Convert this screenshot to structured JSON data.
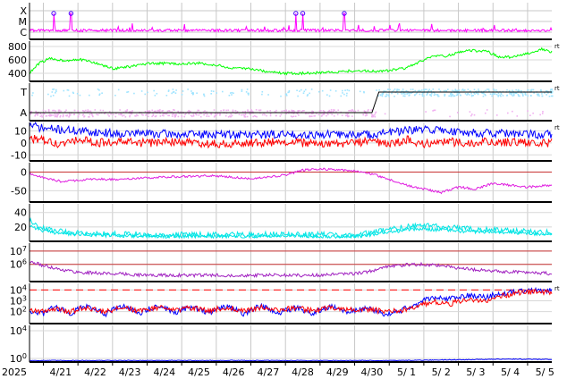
{
  "chart_data": {
    "type": "line",
    "x_axis": {
      "year_label": "2025",
      "dates": [
        "4/21",
        "4/22",
        "4/23",
        "4/24",
        "4/25",
        "4/26",
        "4/27",
        "4/28",
        "4/29",
        "4/30",
        "5/ 1",
        "5/ 2",
        "5/ 3",
        "5/ 4",
        "5/ 5"
      ],
      "day_range": [
        20.6,
        35.7
      ],
      "grid": true
    },
    "panels": [
      {
        "id": "xray",
        "type": "line",
        "yticks": [
          "X",
          "M",
          "C"
        ],
        "series": [
          {
            "color": "#ff00ff",
            "style": "spiky flux near C level with occasional flares to M"
          }
        ],
        "events": [
          21.3,
          21.8,
          28.3,
          28.5,
          29.7
        ],
        "event_color": "#4400ff"
      },
      {
        "id": "speed",
        "type": "line",
        "yticks": [
          400,
          600,
          800
        ],
        "ylim": [
          280,
          880
        ],
        "rt": "rt",
        "series": [
          {
            "color": "#00ff00",
            "x": [
              20.6,
              20.9,
              21.2,
              21.6,
              22.0,
              22.4,
              23.0,
              23.5,
              24.0,
              24.5,
              25.0,
              25.5,
              26.0,
              26.5,
              27.0,
              27.5,
              28.0,
              28.5,
              29.0,
              29.5,
              30.0,
              30.5,
              31.0,
              31.5,
              32.0,
              32.3,
              32.7,
              33.0,
              33.4,
              33.8,
              34.2,
              34.6,
              35.0,
              35.4,
              35.7
            ],
            "values": [
              400,
              560,
              620,
              590,
              610,
              570,
              470,
              500,
              540,
              550,
              540,
              550,
              520,
              470,
              470,
              420,
              400,
              400,
              410,
              420,
              440,
              430,
              440,
              480,
              600,
              650,
              660,
              720,
              740,
              730,
              640,
              640,
              700,
              760,
              720
            ]
          }
        ]
      },
      {
        "id": "polarity",
        "type": "line",
        "yticks": [
          "T",
          "A"
        ],
        "rt": "rt",
        "series": [
          {
            "color": "#f0b0f0",
            "style": "scattered points near A level until 4/30"
          },
          {
            "color": "#a0e4ff",
            "style": "scattered points near T level"
          },
          {
            "color": "#000000",
            "x": [
              20.6,
              30.5,
              30.7,
              35.7
            ],
            "values": [
              "A",
              "A",
              "T",
              "T"
            ]
          }
        ]
      },
      {
        "id": "imf",
        "type": "line",
        "yticks": [
          10,
          0,
          -10
        ],
        "ylim": [
          -15,
          17
        ],
        "rt": "rt",
        "series": [
          {
            "color": "#ff0000",
            "x": [
              20.6,
              21.0,
              21.5,
              22.0,
              22.5,
              23.0,
              24.0,
              25.0,
              26.0,
              27.0,
              28.0,
              29.0,
              30.0,
              30.5,
              31.0,
              31.5,
              32.0,
              32.5,
              33.0,
              34.0,
              35.0,
              35.7
            ],
            "values": [
              4,
              2,
              -2,
              3,
              0,
              1,
              0,
              1,
              -1,
              0,
              1,
              -1,
              0,
              2,
              -2,
              3,
              -1,
              2,
              0,
              1,
              0,
              0
            ]
          },
          {
            "color": "#0000ff",
            "x": [
              20.6,
              21.0,
              21.5,
              22.0,
              22.5,
              23.0,
              24.0,
              25.0,
              26.0,
              27.0,
              28.0,
              29.0,
              30.0,
              30.5,
              31.0,
              31.5,
              32.0,
              32.5,
              33.0,
              34.0,
              35.0,
              35.7
            ],
            "values": [
              15,
              12,
              11,
              10,
              9,
              8,
              8,
              7,
              7,
              7,
              7,
              7,
              7,
              7,
              9,
              10,
              11,
              11,
              9,
              8,
              7,
              7
            ]
          }
        ]
      },
      {
        "id": "dst",
        "type": "line",
        "yticks": [
          0,
          -50
        ],
        "ylim": [
          -80,
          25
        ],
        "series": [
          {
            "color": "#c83232",
            "x": [
              20.6,
              35.7
            ],
            "values": [
              0,
              0
            ]
          },
          {
            "color": "#e020e0",
            "x": [
              20.6,
              21.0,
              21.5,
              22.0,
              22.5,
              23.0,
              24.0,
              25.0,
              26.0,
              27.0,
              28.0,
              28.5,
              29.0,
              29.5,
              30.0,
              30.5,
              31.0,
              31.5,
              32.0,
              32.5,
              33.0,
              33.5,
              34.0,
              34.5,
              35.0,
              35.7
            ],
            "values": [
              -5,
              -15,
              -25,
              -22,
              -18,
              -20,
              -15,
              -12,
              -10,
              -18,
              -8,
              5,
              8,
              6,
              2,
              -5,
              -20,
              -35,
              -45,
              -55,
              -40,
              -45,
              -30,
              -35,
              -40,
              -35
            ]
          }
        ]
      },
      {
        "id": "kp",
        "type": "line",
        "yticks": [
          40,
          20
        ],
        "ylim": [
          0,
          52
        ],
        "series": [
          {
            "color": "#00e5e5",
            "x": [
              20.6,
              21.0,
              21.5,
              22.0,
              23.0,
              24.0,
              25.0,
              26.0,
              27.0,
              28.0,
              29.0,
              30.0,
              30.5,
              31.0,
              31.5,
              32.0,
              32.5,
              33.0,
              34.0,
              35.0,
              35.7
            ],
            "values": [
              28,
              18,
              14,
              12,
              10,
              9,
              9,
              9,
              9,
              10,
              9,
              8,
              12,
              16,
              20,
              22,
              20,
              18,
              16,
              14,
              12
            ]
          }
        ]
      },
      {
        "id": "proton",
        "type": "line",
        "yticks": [
          "10^7",
          "10^6"
        ],
        "ylog": true,
        "ylim": [
          50000,
          40000000
        ],
        "series": [
          {
            "color": "#c83232",
            "x": [
              20.6,
              35.7
            ],
            "values": [
              10000000,
              10000000
            ]
          },
          {
            "color": "#c83232",
            "x": [
              20.6,
              35.7
            ],
            "values": [
              1000000,
              1000000
            ]
          },
          {
            "color": "#a020c0",
            "x": [
              20.6,
              21.0,
              21.5,
              22.0,
              23.0,
              24.0,
              25.0,
              26.0,
              27.0,
              28.0,
              29.0,
              30.0,
              30.5,
              31.0,
              31.5,
              32.0,
              32.5,
              33.0,
              34.0,
              35.0,
              35.7
            ],
            "values": [
              1500000,
              800000,
              400000,
              250000,
              200000,
              150000,
              150000,
              150000,
              150000,
              150000,
              150000,
              200000,
              300000,
              700000,
              900000,
              1000000,
              800000,
              500000,
              300000,
              250000,
              200000
            ]
          }
        ]
      },
      {
        "id": "electron",
        "type": "line",
        "yticks": [
          "10^4",
          "10^3",
          "10^2"
        ],
        "ylog": true,
        "ylim": [
          8,
          40000
        ],
        "rt": "rt",
        "series": [
          {
            "color": "#ff0000",
            "style": "dashed",
            "x": [
              20.6,
              35.7
            ],
            "values": [
              10000,
              10000
            ]
          },
          {
            "color": "#0000ff",
            "x": [
              20.6,
              21.0,
              21.3,
              21.8,
              22.2,
              22.8,
              23.3,
              23.8,
              24.3,
              24.8,
              25.3,
              25.8,
              26.3,
              26.8,
              27.3,
              27.8,
              28.3,
              28.8,
              29.3,
              29.8,
              30.3,
              30.8,
              31.3,
              31.8,
              32.3,
              32.8,
              33.3,
              33.8,
              34.3,
              34.8,
              35.3,
              35.7
            ],
            "values": [
              120,
              60,
              250,
              40,
              300,
              50,
              280,
              60,
              300,
              70,
              250,
              60,
              280,
              40,
              300,
              60,
              220,
              40,
              300,
              80,
              200,
              60,
              100,
              400,
              2000,
              1500,
              3000,
              2000,
              5000,
              8000,
              10000,
              8000
            ]
          },
          {
            "color": "#ff0000",
            "x": [
              20.6,
              21.0,
              21.3,
              21.8,
              22.2,
              22.8,
              23.3,
              23.8,
              24.3,
              24.8,
              25.3,
              25.8,
              26.3,
              26.8,
              27.3,
              27.8,
              28.3,
              28.8,
              29.3,
              29.8,
              30.3,
              30.8,
              31.3,
              31.8,
              32.3,
              32.8,
              33.3,
              33.8,
              34.3,
              34.8,
              35.3,
              35.7
            ],
            "values": [
              150,
              100,
              200,
              90,
              220,
              100,
              230,
              110,
              240,
              120,
              230,
              120,
              250,
              110,
              240,
              130,
              220,
              110,
              230,
              140,
              180,
              110,
              120,
              200,
              800,
              500,
              1500,
              600,
              3000,
              5000,
              8000,
              5000
            ]
          }
        ]
      },
      {
        "id": "bottom",
        "type": "line",
        "yticks": [
          "10^4",
          "10^0"
        ],
        "ylog": true,
        "ylim": [
          0.3,
          60000
        ],
        "series": [
          {
            "color": "#0000ff",
            "x": [
              20.6,
              31.5,
              32.5,
              33.5,
              34.5,
              35.7
            ],
            "values": [
              0.5,
              0.5,
              0.6,
              0.7,
              0.8,
              0.7
            ]
          }
        ]
      }
    ]
  }
}
